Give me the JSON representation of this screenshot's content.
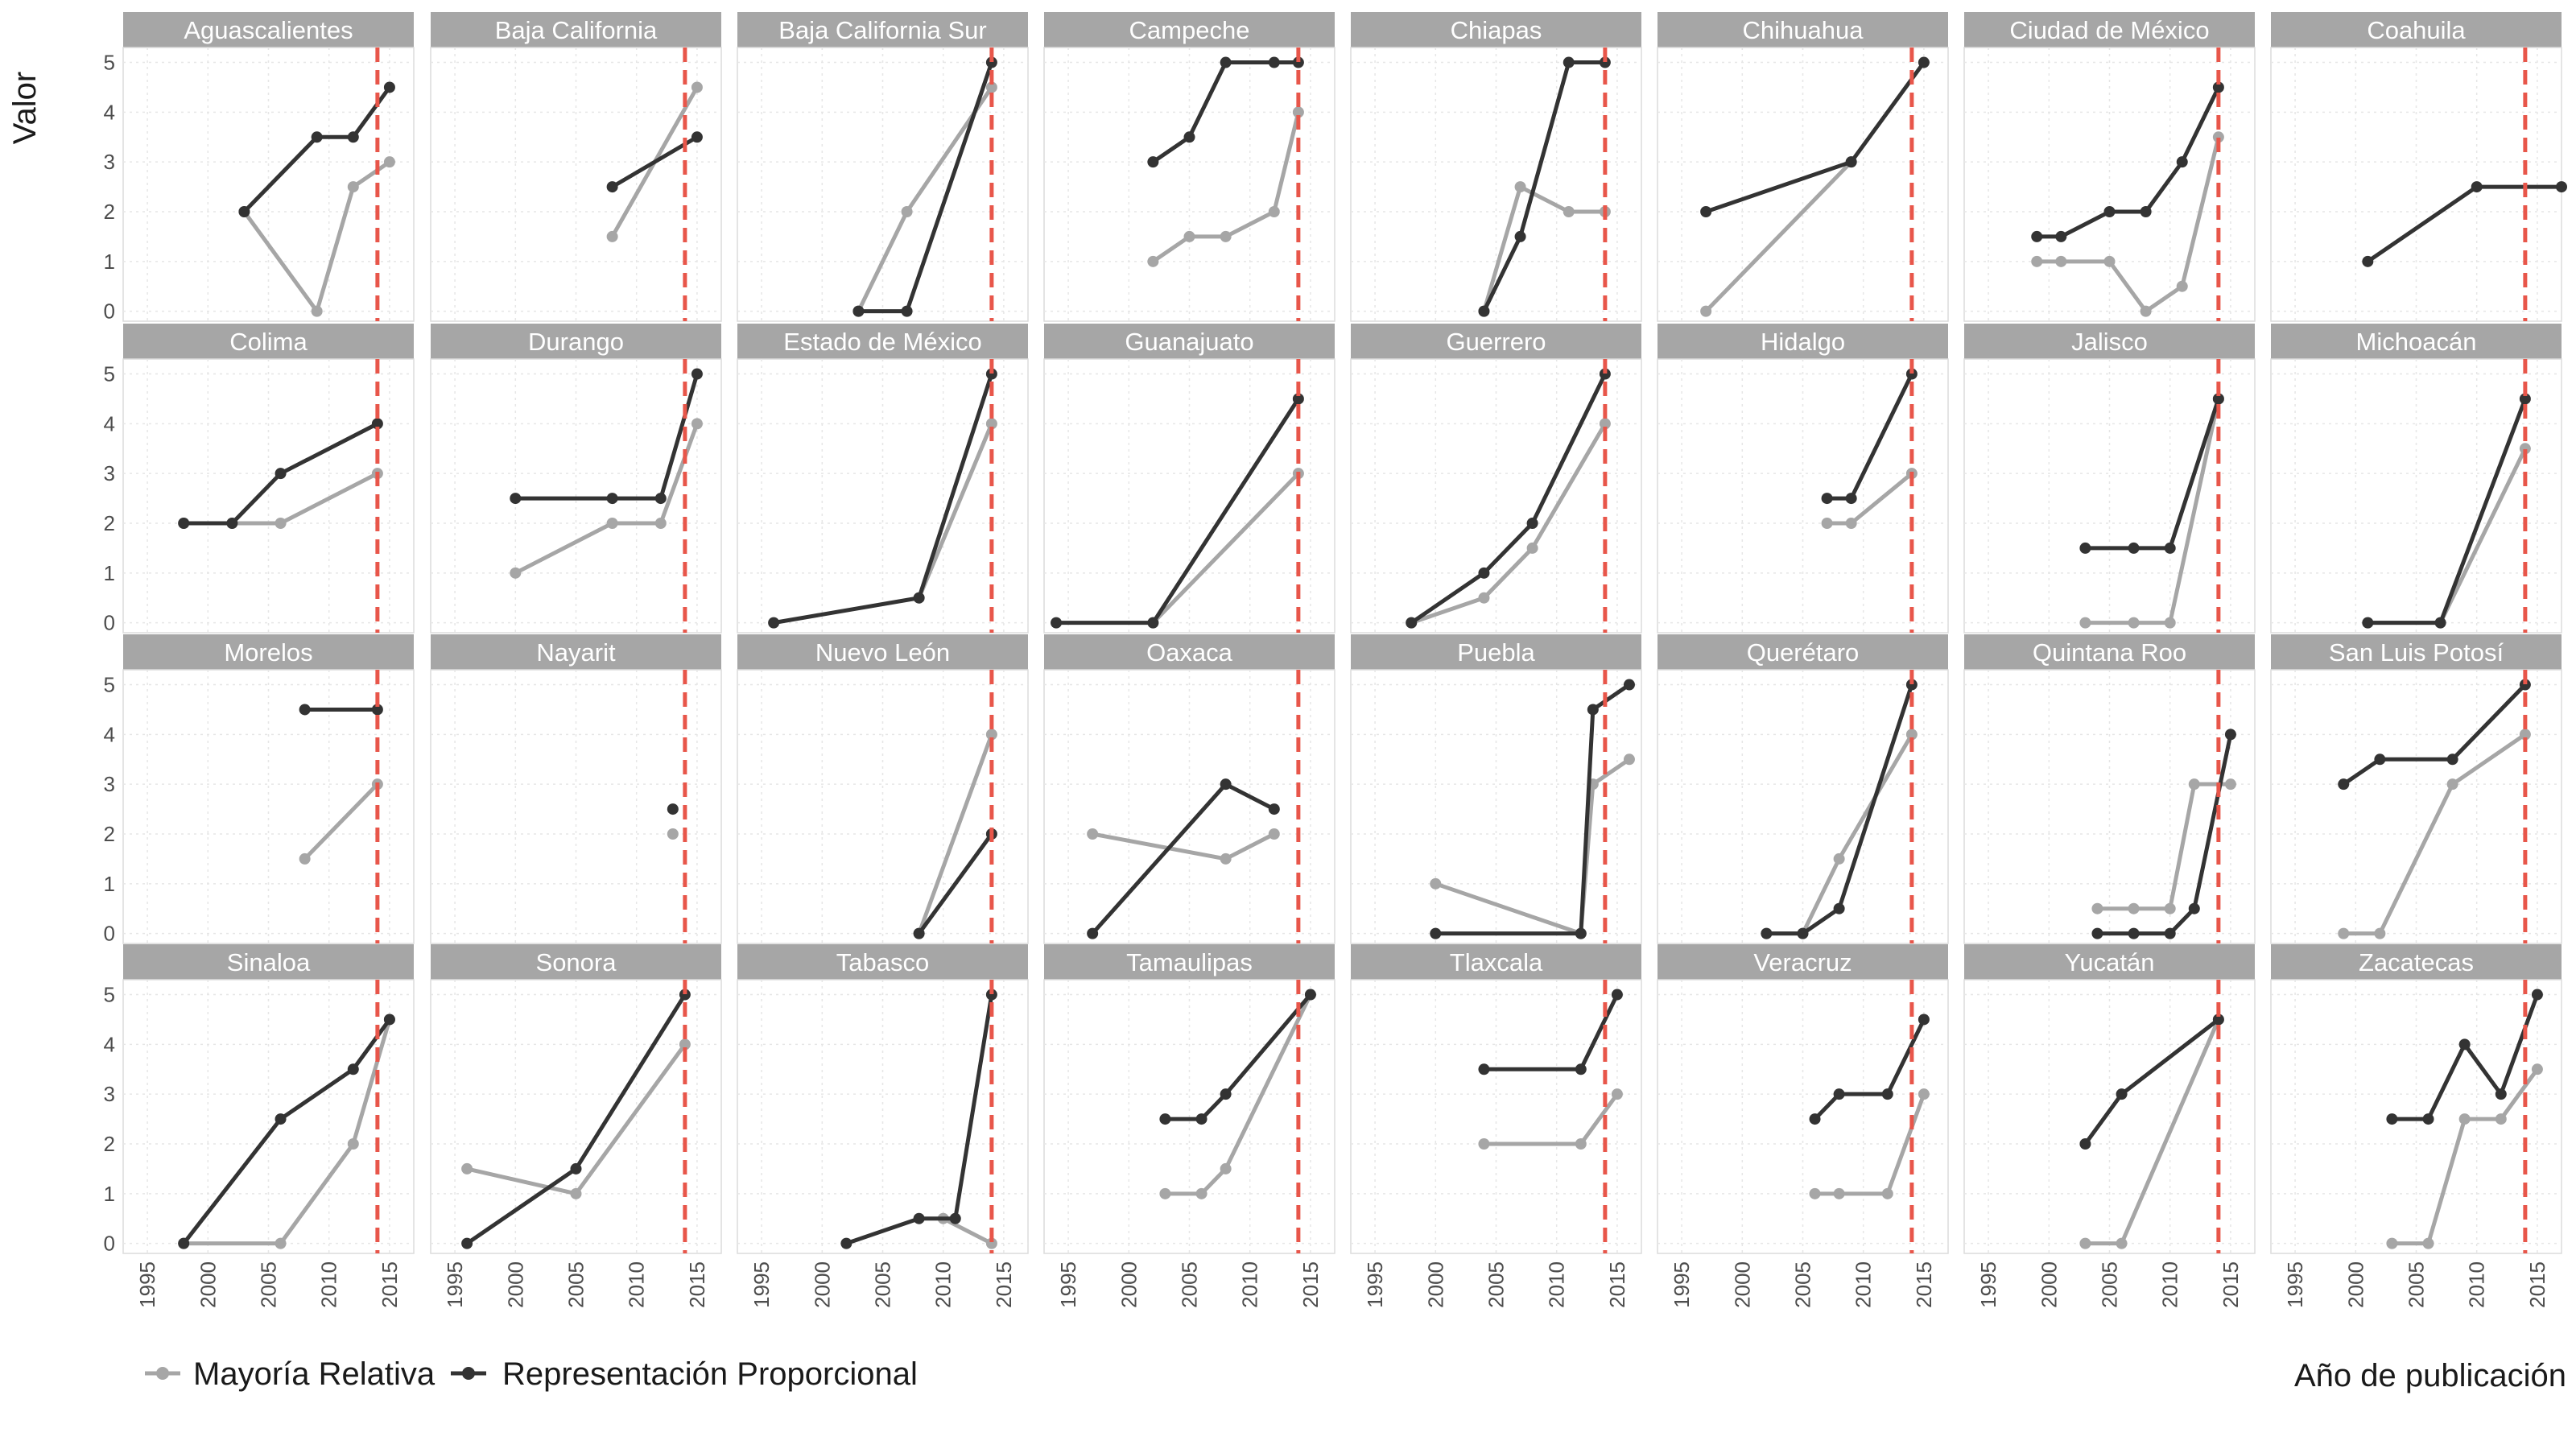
{
  "chart_data": {
    "type": "line",
    "title": "",
    "xlabel": "Año de publicación",
    "ylabel": "Valor",
    "xlim": [
      1993,
      2017
    ],
    "ylim": [
      -0.2,
      5.3
    ],
    "x_ticks": [
      1995,
      2000,
      2005,
      2010,
      2015
    ],
    "y_ticks": [
      0,
      1,
      2,
      3,
      4,
      5
    ],
    "grid": true,
    "reference_line": {
      "x": 2014,
      "style": "dashed",
      "color": "#e8564a"
    },
    "legend": {
      "position": "bottom-left",
      "entries": [
        {
          "key": "mr",
          "label": "Mayoría Relativa",
          "color": "#a6a6a6"
        },
        {
          "key": "rp",
          "label": "Representación Proporcional",
          "color": "#333333"
        }
      ]
    },
    "colors": {
      "mr": "#a6a6a6",
      "rp": "#333333",
      "strip": "#a6a6a6",
      "panel_border": "#dcdcdc",
      "grid": "#e6e6e6"
    },
    "panels": [
      {
        "name": "Aguascalientes",
        "mr": [
          [
            2003,
            2
          ],
          [
            2009,
            0
          ],
          [
            2012,
            2.5
          ],
          [
            2015,
            3
          ]
        ],
        "rp": [
          [
            2003,
            2
          ],
          [
            2009,
            3.5
          ],
          [
            2012,
            3.5
          ],
          [
            2015,
            4.5
          ]
        ]
      },
      {
        "name": "Baja California",
        "mr": [
          [
            2008,
            1.5
          ],
          [
            2015,
            4.5
          ]
        ],
        "rp": [
          [
            2008,
            2.5
          ],
          [
            2015,
            3.5
          ]
        ]
      },
      {
        "name": "Baja California Sur",
        "mr": [
          [
            2003,
            0
          ],
          [
            2007,
            2
          ],
          [
            2014,
            4.5
          ]
        ],
        "rp": [
          [
            2003,
            0
          ],
          [
            2007,
            0
          ],
          [
            2014,
            5
          ]
        ]
      },
      {
        "name": "Campeche",
        "mr": [
          [
            2002,
            1
          ],
          [
            2005,
            1.5
          ],
          [
            2008,
            1.5
          ],
          [
            2012,
            2
          ],
          [
            2014,
            4
          ]
        ],
        "rp": [
          [
            2002,
            3
          ],
          [
            2005,
            3.5
          ],
          [
            2008,
            5
          ],
          [
            2012,
            5
          ],
          [
            2014,
            5
          ]
        ]
      },
      {
        "name": "Chiapas",
        "mr": [
          [
            2004,
            0
          ],
          [
            2007,
            2.5
          ],
          [
            2011,
            2
          ],
          [
            2014,
            2
          ]
        ],
        "rp": [
          [
            2004,
            0
          ],
          [
            2007,
            1.5
          ],
          [
            2011,
            5
          ],
          [
            2014,
            5
          ]
        ]
      },
      {
        "name": "Chihuahua",
        "mr": [
          [
            1997,
            0
          ],
          [
            2009,
            3
          ]
        ],
        "rp": [
          [
            1997,
            2
          ],
          [
            2009,
            3
          ],
          [
            2015,
            5
          ]
        ]
      },
      {
        "name": "Ciudad de México",
        "mr": [
          [
            1999,
            1
          ],
          [
            2001,
            1
          ],
          [
            2005,
            1
          ],
          [
            2008,
            0
          ],
          [
            2011,
            0.5
          ],
          [
            2014,
            3.5
          ]
        ],
        "rp": [
          [
            1999,
            1.5
          ],
          [
            2001,
            1.5
          ],
          [
            2005,
            2
          ],
          [
            2008,
            2
          ],
          [
            2011,
            3
          ],
          [
            2014,
            4.5
          ]
        ]
      },
      {
        "name": "Coahuila",
        "mr": [],
        "rp": [
          [
            2001,
            1
          ],
          [
            2010,
            2.5
          ],
          [
            2017,
            2.5
          ]
        ]
      },
      {
        "name": "Colima",
        "mr": [
          [
            1998,
            2
          ],
          [
            2002,
            2
          ],
          [
            2006,
            2
          ],
          [
            2014,
            3
          ]
        ],
        "rp": [
          [
            1998,
            2
          ],
          [
            2002,
            2
          ],
          [
            2006,
            3
          ],
          [
            2014,
            4
          ]
        ]
      },
      {
        "name": "Durango",
        "mr": [
          [
            2000,
            1
          ],
          [
            2008,
            2
          ],
          [
            2012,
            2
          ],
          [
            2015,
            4
          ]
        ],
        "rp": [
          [
            2000,
            2.5
          ],
          [
            2008,
            2.5
          ],
          [
            2012,
            2.5
          ],
          [
            2015,
            5
          ]
        ]
      },
      {
        "name": "Estado de México",
        "mr": [
          [
            2008,
            0.5
          ],
          [
            2014,
            4
          ]
        ],
        "rp": [
          [
            1996,
            0
          ],
          [
            2008,
            0.5
          ],
          [
            2014,
            5
          ]
        ]
      },
      {
        "name": "Guanajuato",
        "mr": [
          [
            2002,
            0
          ],
          [
            2014,
            3
          ]
        ],
        "rp": [
          [
            1994,
            0
          ],
          [
            2002,
            0
          ],
          [
            2014,
            4.5
          ]
        ]
      },
      {
        "name": "Guerrero",
        "mr": [
          [
            1998,
            0
          ],
          [
            2004,
            0.5
          ],
          [
            2008,
            1.5
          ],
          [
            2014,
            4
          ]
        ],
        "rp": [
          [
            1998,
            0
          ],
          [
            2004,
            1
          ],
          [
            2008,
            2
          ],
          [
            2014,
            5
          ]
        ]
      },
      {
        "name": "Hidalgo",
        "mr": [
          [
            2007,
            2
          ],
          [
            2009,
            2
          ],
          [
            2014,
            3
          ]
        ],
        "rp": [
          [
            2007,
            2.5
          ],
          [
            2009,
            2.5
          ],
          [
            2014,
            5
          ]
        ]
      },
      {
        "name": "Jalisco",
        "mr": [
          [
            2003,
            0
          ],
          [
            2007,
            0
          ],
          [
            2010,
            0
          ],
          [
            2014,
            4.5
          ]
        ],
        "rp": [
          [
            2003,
            1.5
          ],
          [
            2007,
            1.5
          ],
          [
            2010,
            1.5
          ],
          [
            2014,
            4.5
          ]
        ]
      },
      {
        "name": "Michoacán",
        "mr": [
          [
            2001,
            0
          ],
          [
            2007,
            0
          ],
          [
            2014,
            3.5
          ]
        ],
        "rp": [
          [
            2001,
            0
          ],
          [
            2007,
            0
          ],
          [
            2014,
            4.5
          ]
        ]
      },
      {
        "name": "Morelos",
        "mr": [
          [
            2008,
            1.5
          ],
          [
            2014,
            3
          ]
        ],
        "rp": [
          [
            2008,
            4.5
          ],
          [
            2014,
            4.5
          ]
        ]
      },
      {
        "name": "Nayarit",
        "mr": [
          [
            2013,
            2
          ]
        ],
        "rp": [
          [
            2013,
            2.5
          ]
        ]
      },
      {
        "name": "Nuevo León",
        "mr": [
          [
            2008,
            0
          ],
          [
            2014,
            4
          ]
        ],
        "rp": [
          [
            2008,
            0
          ],
          [
            2014,
            2
          ]
        ]
      },
      {
        "name": "Oaxaca",
        "mr": [
          [
            1997,
            2
          ],
          [
            2008,
            1.5
          ],
          [
            2012,
            2
          ]
        ],
        "rp": [
          [
            1997,
            0
          ],
          [
            2008,
            3
          ],
          [
            2012,
            2.5
          ]
        ]
      },
      {
        "name": "Puebla",
        "mr": [
          [
            2000,
            1
          ],
          [
            2012,
            0
          ],
          [
            2013,
            3
          ],
          [
            2016,
            3.5
          ]
        ],
        "rp": [
          [
            2000,
            0
          ],
          [
            2012,
            0
          ],
          [
            2013,
            4.5
          ],
          [
            2016,
            5
          ]
        ]
      },
      {
        "name": "Querétaro",
        "mr": [
          [
            2002,
            0
          ],
          [
            2005,
            0
          ],
          [
            2008,
            1.5
          ],
          [
            2014,
            4
          ]
        ],
        "rp": [
          [
            2002,
            0
          ],
          [
            2005,
            0
          ],
          [
            2008,
            0.5
          ],
          [
            2014,
            5
          ]
        ]
      },
      {
        "name": "Quintana Roo",
        "mr": [
          [
            2004,
            0.5
          ],
          [
            2007,
            0.5
          ],
          [
            2010,
            0.5
          ],
          [
            2012,
            3
          ],
          [
            2015,
            3
          ]
        ],
        "rp": [
          [
            2004,
            0
          ],
          [
            2007,
            0
          ],
          [
            2010,
            0
          ],
          [
            2012,
            0.5
          ],
          [
            2015,
            4
          ]
        ]
      },
      {
        "name": "San Luis Potosí",
        "mr": [
          [
            1999,
            0
          ],
          [
            2002,
            0
          ],
          [
            2008,
            3
          ],
          [
            2014,
            4
          ]
        ],
        "rp": [
          [
            1999,
            3
          ],
          [
            2002,
            3.5
          ],
          [
            2008,
            3.5
          ],
          [
            2014,
            5
          ]
        ]
      },
      {
        "name": "Sinaloa",
        "mr": [
          [
            1998,
            0
          ],
          [
            2006,
            0
          ],
          [
            2012,
            2
          ],
          [
            2015,
            4.5
          ]
        ],
        "rp": [
          [
            1998,
            0
          ],
          [
            2006,
            2.5
          ],
          [
            2012,
            3.5
          ],
          [
            2015,
            4.5
          ]
        ]
      },
      {
        "name": "Sonora",
        "mr": [
          [
            1996,
            1.5
          ],
          [
            2005,
            1
          ],
          [
            2014,
            4
          ]
        ],
        "rp": [
          [
            1996,
            0
          ],
          [
            2005,
            1.5
          ],
          [
            2014,
            5
          ]
        ]
      },
      {
        "name": "Tabasco",
        "mr": [
          [
            2010,
            0.5
          ],
          [
            2014,
            0
          ]
        ],
        "rp": [
          [
            2002,
            0
          ],
          [
            2008,
            0.5
          ],
          [
            2011,
            0.5
          ],
          [
            2014,
            5
          ]
        ]
      },
      {
        "name": "Tamaulipas",
        "mr": [
          [
            2003,
            1
          ],
          [
            2006,
            1
          ],
          [
            2008,
            1.5
          ],
          [
            2015,
            5
          ]
        ],
        "rp": [
          [
            2003,
            2.5
          ],
          [
            2006,
            2.5
          ],
          [
            2008,
            3
          ],
          [
            2015,
            5
          ]
        ]
      },
      {
        "name": "Tlaxcala",
        "mr": [
          [
            2004,
            2
          ],
          [
            2012,
            2
          ],
          [
            2015,
            3
          ]
        ],
        "rp": [
          [
            2004,
            3.5
          ],
          [
            2012,
            3.5
          ],
          [
            2015,
            5
          ]
        ]
      },
      {
        "name": "Veracruz",
        "mr": [
          [
            2006,
            1
          ],
          [
            2008,
            1
          ],
          [
            2012,
            1
          ],
          [
            2015,
            3
          ]
        ],
        "rp": [
          [
            2006,
            2.5
          ],
          [
            2008,
            3
          ],
          [
            2012,
            3
          ],
          [
            2015,
            4.5
          ]
        ]
      },
      {
        "name": "Yucatán",
        "mr": [
          [
            2003,
            0
          ],
          [
            2006,
            0
          ],
          [
            2014,
            4.5
          ]
        ],
        "rp": [
          [
            2003,
            2
          ],
          [
            2006,
            3
          ],
          [
            2014,
            4.5
          ]
        ]
      },
      {
        "name": "Zacatecas",
        "mr": [
          [
            2003,
            0
          ],
          [
            2006,
            0
          ],
          [
            2009,
            2.5
          ],
          [
            2012,
            2.5
          ],
          [
            2015,
            3.5
          ]
        ],
        "rp": [
          [
            2003,
            2.5
          ],
          [
            2006,
            2.5
          ],
          [
            2009,
            4
          ],
          [
            2012,
            3
          ],
          [
            2015,
            5
          ]
        ]
      }
    ]
  }
}
